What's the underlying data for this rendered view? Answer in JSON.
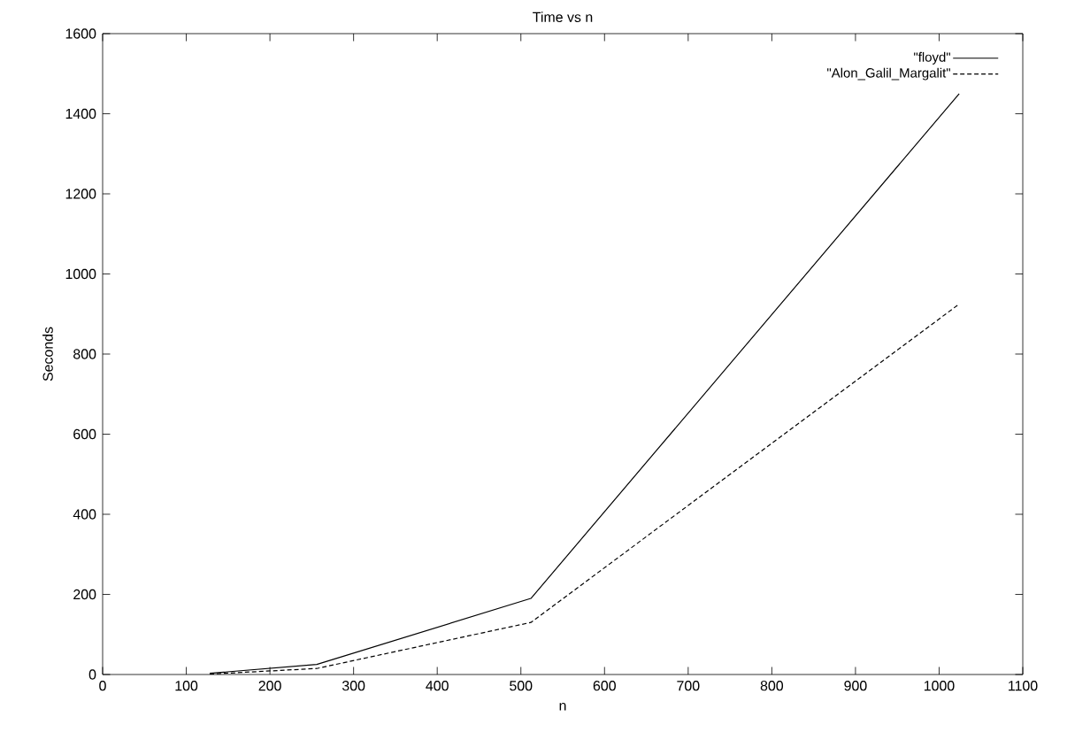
{
  "chart_data": {
    "type": "line",
    "title": "Time vs n",
    "xlabel": "n",
    "ylabel": "Seconds",
    "series": [
      {
        "name": "\"floyd\"",
        "color": "#000000",
        "line_style": "solid",
        "x": [
          128,
          256,
          512,
          1024
        ],
        "values": [
          3,
          25,
          190,
          1450
        ]
      },
      {
        "name": "\"Alon_Galil_Margalit\"",
        "color": "#000000",
        "line_style": "dashed",
        "x": [
          128,
          256,
          512,
          1024
        ],
        "values": [
          1,
          15,
          130,
          925
        ]
      }
    ],
    "xlim": [
      0,
      1100
    ],
    "ylim": [
      0,
      1600
    ],
    "xticks": [
      0,
      100,
      200,
      300,
      400,
      500,
      600,
      700,
      800,
      900,
      1000,
      1100
    ],
    "yticks": [
      0,
      200,
      400,
      600,
      800,
      1000,
      1200,
      1400,
      1600
    ],
    "legend": "top right",
    "grid": false,
    "marker": "none"
  }
}
